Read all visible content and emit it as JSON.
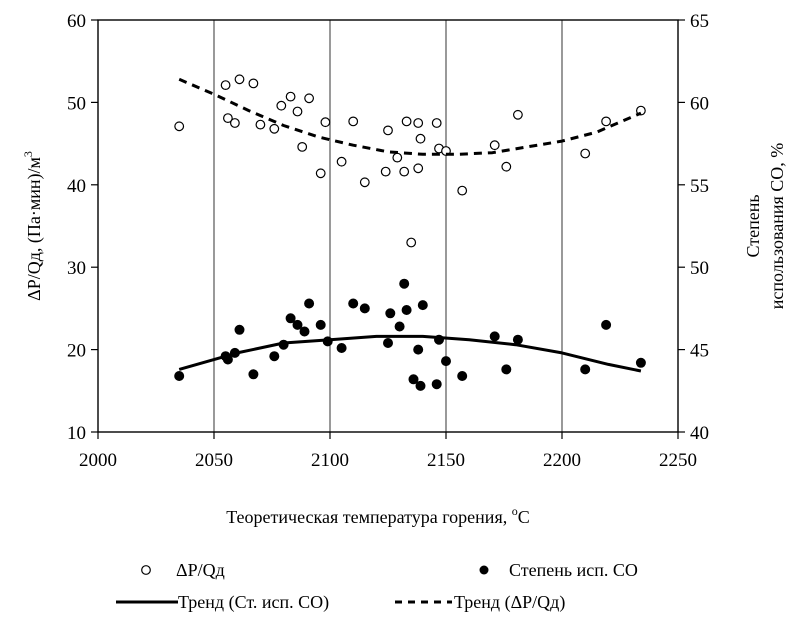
{
  "chart_data": {
    "type": "scatter",
    "xlabel": "Теоретическая температура горения, °С",
    "ylabel_left": "ΔP/Qд, (Па·мин)/м³",
    "ylabel_right_line1": "Степень",
    "ylabel_right_line2": "использования СО, %",
    "xlim": [
      2000,
      2250
    ],
    "ylim_left": [
      10,
      60
    ],
    "ylim_right": [
      40,
      65
    ],
    "x_ticks": [
      "2000",
      "2050",
      "2100",
      "2150",
      "2200",
      "2250"
    ],
    "y_left_ticks": [
      "10",
      "20",
      "30",
      "40",
      "50",
      "60"
    ],
    "y_right_ticks": [
      "40",
      "45",
      "50",
      "55",
      "60",
      "65"
    ],
    "grid": "vertical",
    "legend_position": "bottom",
    "series": [
      {
        "name": "ΔP/Qд",
        "axis": "left",
        "marker": "open-circle",
        "points": [
          [
            2035,
            47.1
          ],
          [
            2055,
            52.1
          ],
          [
            2056,
            48.1
          ],
          [
            2059,
            47.5
          ],
          [
            2061,
            52.8
          ],
          [
            2067,
            52.3
          ],
          [
            2070,
            47.3
          ],
          [
            2076,
            46.8
          ],
          [
            2079,
            49.6
          ],
          [
            2083,
            50.7
          ],
          [
            2086,
            48.9
          ],
          [
            2088,
            44.6
          ],
          [
            2091,
            50.5
          ],
          [
            2096,
            41.4
          ],
          [
            2098,
            47.6
          ],
          [
            2105,
            42.8
          ],
          [
            2110,
            47.7
          ],
          [
            2115,
            40.3
          ],
          [
            2124,
            41.6
          ],
          [
            2125,
            46.6
          ],
          [
            2129,
            43.3
          ],
          [
            2132,
            41.6
          ],
          [
            2133,
            47.7
          ],
          [
            2135,
            33.0
          ],
          [
            2138,
            47.5
          ],
          [
            2138,
            42.0
          ],
          [
            2139,
            45.6
          ],
          [
            2146,
            47.5
          ],
          [
            2147,
            44.4
          ],
          [
            2150,
            44.1
          ],
          [
            2157,
            39.3
          ],
          [
            2171,
            44.8
          ],
          [
            2176,
            42.2
          ],
          [
            2181,
            48.5
          ],
          [
            2210,
            43.8
          ],
          [
            2219,
            47.7
          ],
          [
            2234,
            49.0
          ]
        ]
      },
      {
        "name": "Степень исп. СО",
        "axis": "right",
        "marker": "filled-circle",
        "points": [
          [
            2035,
            43.4
          ],
          [
            2055,
            44.6
          ],
          [
            2056,
            44.4
          ],
          [
            2059,
            44.8
          ],
          [
            2061,
            46.2
          ],
          [
            2067,
            43.5
          ],
          [
            2076,
            44.6
          ],
          [
            2080,
            45.3
          ],
          [
            2083,
            46.9
          ],
          [
            2086,
            46.5
          ],
          [
            2089,
            46.1
          ],
          [
            2091,
            47.8
          ],
          [
            2096,
            46.5
          ],
          [
            2099,
            45.5
          ],
          [
            2105,
            45.1
          ],
          [
            2110,
            47.8
          ],
          [
            2115,
            47.5
          ],
          [
            2125,
            45.4
          ],
          [
            2126,
            47.2
          ],
          [
            2130,
            46.4
          ],
          [
            2132,
            49.0
          ],
          [
            2133,
            47.4
          ],
          [
            2136,
            43.2
          ],
          [
            2138,
            45.0
          ],
          [
            2139,
            42.8
          ],
          [
            2140,
            47.7
          ],
          [
            2146,
            42.9
          ],
          [
            2147,
            45.6
          ],
          [
            2150,
            44.3
          ],
          [
            2157,
            43.4
          ],
          [
            2171,
            45.8
          ],
          [
            2176,
            43.8
          ],
          [
            2181,
            45.6
          ],
          [
            2210,
            43.8
          ],
          [
            2219,
            46.5
          ],
          [
            2234,
            44.2
          ]
        ]
      },
      {
        "name": "Тренд (Ст. исп. СО)",
        "axis": "right",
        "style": "solid",
        "points": [
          [
            2035,
            43.8
          ],
          [
            2060,
            44.8
          ],
          [
            2080,
            45.4
          ],
          [
            2100,
            45.6
          ],
          [
            2120,
            45.8
          ],
          [
            2140,
            45.8
          ],
          [
            2160,
            45.6
          ],
          [
            2180,
            45.3
          ],
          [
            2200,
            44.8
          ],
          [
            2220,
            44.1
          ],
          [
            2234,
            43.7
          ]
        ]
      },
      {
        "name": "Тренд (ΔP/Qд)",
        "axis": "left",
        "style": "dashed",
        "points": [
          [
            2035,
            52.8
          ],
          [
            2050,
            51.0
          ],
          [
            2065,
            49.0
          ],
          [
            2080,
            47.2
          ],
          [
            2095,
            45.8
          ],
          [
            2110,
            44.8
          ],
          [
            2125,
            44.0
          ],
          [
            2140,
            43.7
          ],
          [
            2155,
            43.7
          ],
          [
            2170,
            43.9
          ],
          [
            2185,
            44.6
          ],
          [
            2200,
            45.3
          ],
          [
            2215,
            46.4
          ],
          [
            2234,
            48.7
          ]
        ]
      }
    ],
    "legend": {
      "open_circle_label": "ΔP/Qд",
      "filled_circle_label": "Степень исп. СО",
      "solid_line_label": "Тренд (Ст. исп. СО)",
      "dashed_line_label": "Тренд (ΔP/Qд)"
    }
  }
}
